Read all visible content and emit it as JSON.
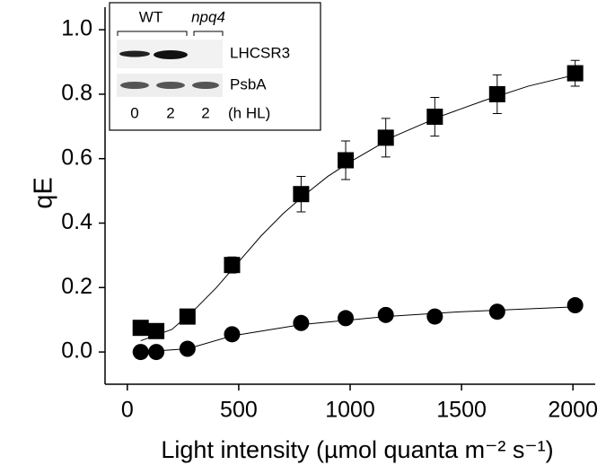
{
  "chart_data": {
    "type": "scatter",
    "x_label": "Light intensity (µmol quanta m⁻² s⁻¹)",
    "y_label": "qE",
    "xlim": [
      -100,
      2100
    ],
    "ylim": [
      -0.1,
      1.07
    ],
    "xticks": [
      0,
      500,
      1000,
      1500,
      2000
    ],
    "yticks": [
      {
        "value": 0,
        "label": "0.0"
      },
      0.2,
      0.4,
      0.6,
      0.8,
      {
        "value": 1,
        "label": "1.0"
      }
    ],
    "series": [
      {
        "marker": "square",
        "color": "#000000",
        "x": [
          60,
          130,
          270,
          470,
          780,
          980,
          1160,
          1380,
          1660,
          2010
        ],
        "values": [
          0.075,
          0.065,
          0.11,
          0.27,
          0.49,
          0.595,
          0.665,
          0.73,
          0.8,
          0.865
        ],
        "errors": [
          null,
          null,
          null,
          0.025,
          0.055,
          0.06,
          0.06,
          0.06,
          0.06,
          0.04
        ]
      },
      {
        "marker": "circle",
        "color": "#000000",
        "x": [
          60,
          130,
          270,
          470,
          780,
          980,
          1160,
          1380,
          1660,
          2010
        ],
        "values": [
          0.0,
          0.0,
          0.01,
          0.055,
          0.09,
          0.105,
          0.115,
          0.11,
          0.125,
          0.145
        ]
      }
    ],
    "fits": [
      {
        "color": "#000000",
        "x": [
          60,
          200,
          300,
          400,
          500,
          600,
          700,
          800,
          900,
          1000,
          1200,
          1400,
          1600,
          1800,
          2010
        ],
        "values": [
          0.035,
          0.07,
          0.13,
          0.2,
          0.28,
          0.36,
          0.43,
          0.49,
          0.545,
          0.59,
          0.67,
          0.73,
          0.78,
          0.825,
          0.86
        ]
      },
      {
        "color": "#000000",
        "x": [
          60,
          270,
          470,
          780,
          1160,
          1500,
          2010
        ],
        "values": [
          0.0,
          0.01,
          0.05,
          0.085,
          0.11,
          0.125,
          0.14
        ]
      }
    ],
    "inset": {
      "groups": [
        "WT",
        "npq4"
      ],
      "rows": [
        "LHCSR3",
        "PsbA"
      ],
      "lanes": [
        "0",
        "2",
        "2"
      ],
      "lane_unit": "(h HL)"
    }
  }
}
